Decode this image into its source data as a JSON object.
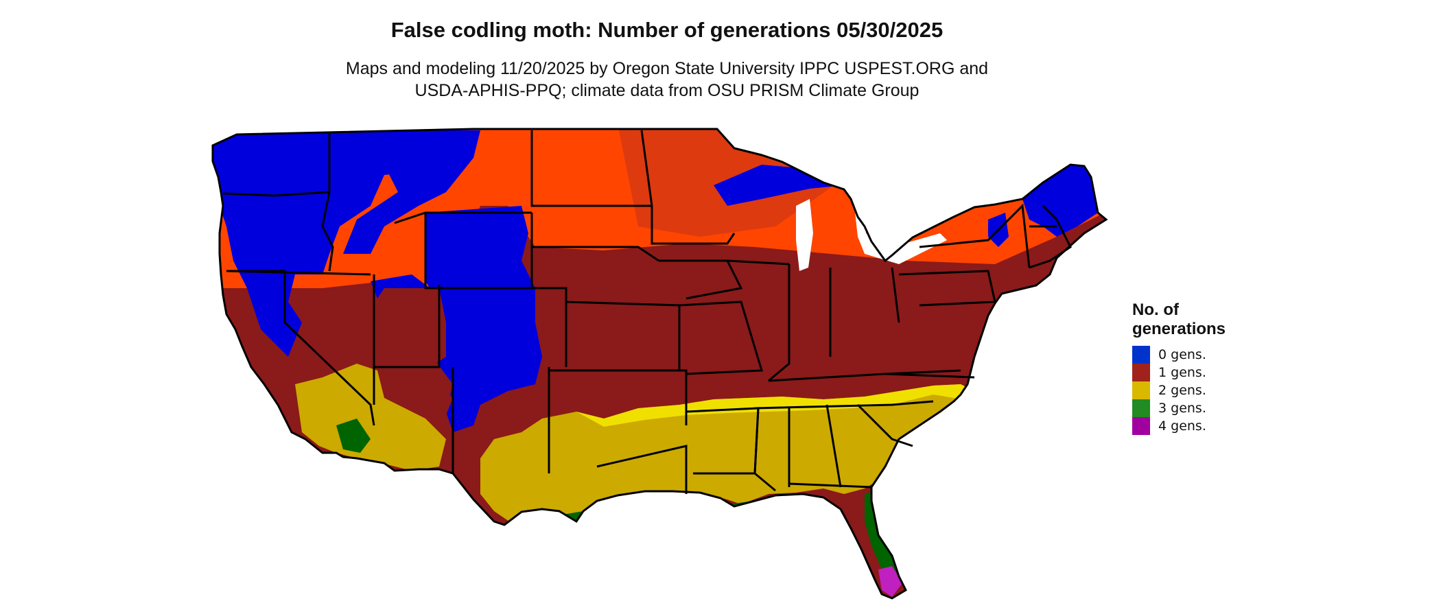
{
  "title": "False codling moth: Number of generations 05/30/2025",
  "subtitle": {
    "line1": "Maps and modeling 11/20/2025 by Oregon State University IPPC USPEST.ORG and",
    "line2": "USDA-APHIS-PPQ; climate data from OSU PRISM Climate Group"
  },
  "legend": {
    "title_line1": "No. of",
    "title_line2": "generations",
    "items": [
      {
        "label": "0 gens.",
        "color": "#0033cc"
      },
      {
        "label": "1 gens.",
        "color": "#a0221a"
      },
      {
        "label": "2 gens.",
        "color": "#d9b800"
      },
      {
        "label": "3 gens.",
        "color": "#228b22"
      },
      {
        "label": "4 gens.",
        "color": "#a000a0"
      }
    ]
  },
  "map_colors": {
    "zero_gens": "#0000dd",
    "one_gen_early": "#ff4500",
    "one_gen_mid": "#dd3a10",
    "one_gen": "#8b1a1a",
    "two_gens": "#ccaa00",
    "two_gens_edge": "#f0e000",
    "three_gens": "#006400",
    "three_gens_edge": "#7fdc8f",
    "four_gens": "#c020c0",
    "borders": "#000000"
  }
}
